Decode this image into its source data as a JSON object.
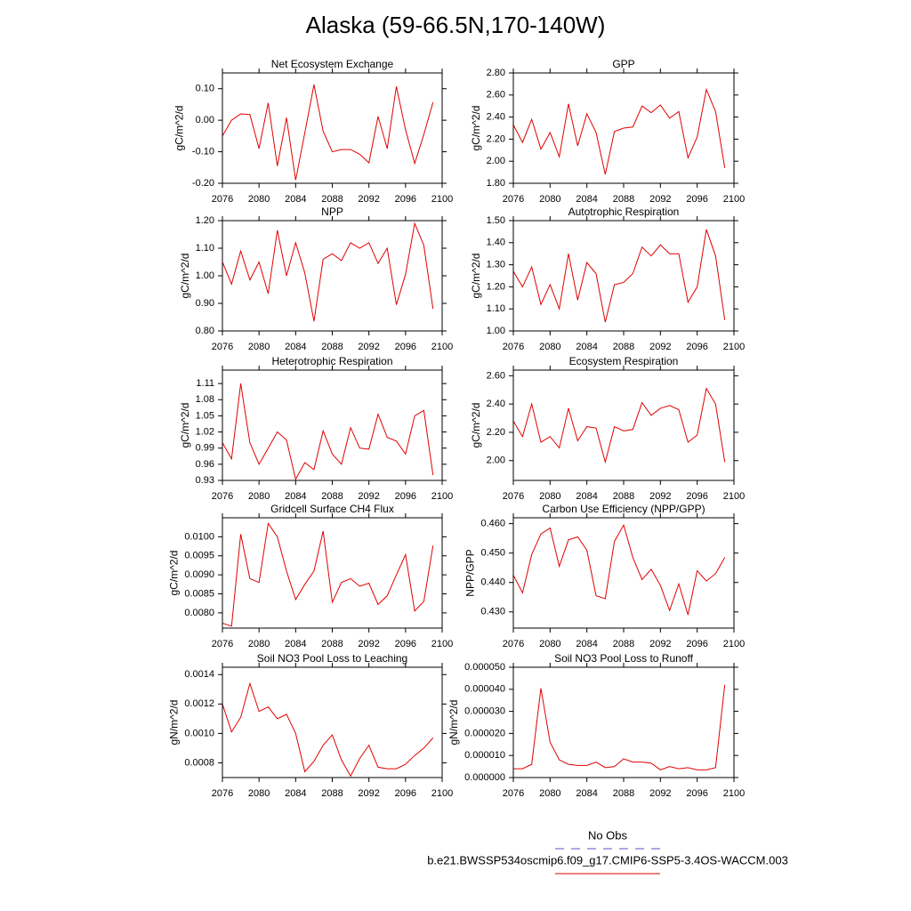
{
  "title": "Alaska (59-66.5N,170-140W)",
  "legend": [
    {
      "name": "No Obs",
      "color": "#5555cc",
      "dash": true
    },
    {
      "name": "b.e21.BWSSP534oscmip6.f09_g17.CMIP6-SSP5-3.4OS-WACCM.003",
      "color": "#e00000",
      "dash": false
    }
  ],
  "chart_data": [
    {
      "type": "line",
      "title": "Net Ecosystem Exchange",
      "ylabel": "gC/m^2/d",
      "x": [
        2076,
        2077,
        2078,
        2079,
        2080,
        2081,
        2082,
        2083,
        2084,
        2085,
        2086,
        2087,
        2088,
        2089,
        2090,
        2091,
        2092,
        2093,
        2094,
        2095,
        2096,
        2097,
        2098,
        2099
      ],
      "series": [
        {
          "color": "#e00000",
          "values": [
            -0.05,
            0.0,
            0.02,
            0.018,
            -0.09,
            0.055,
            -0.145,
            0.008,
            -0.19,
            -0.04,
            0.113,
            -0.035,
            -0.1,
            -0.093,
            -0.093,
            -0.108,
            -0.135,
            0.012,
            -0.09,
            0.107,
            -0.03,
            -0.137,
            -0.045,
            0.057
          ]
        }
      ],
      "xlim": [
        2076,
        2100
      ],
      "xticks": [
        2076,
        2080,
        2084,
        2088,
        2092,
        2096,
        2100
      ],
      "ylim": [
        -0.2,
        0.15
      ],
      "yticks": [
        {
          "value": -0.2,
          "label": "-0.20"
        },
        {
          "value": -0.1,
          "label": "-0.10"
        },
        {
          "value": 0,
          "label": "0.00"
        },
        {
          "value": 0.1,
          "label": "0.10"
        }
      ]
    },
    {
      "type": "line",
      "title": "GPP",
      "ylabel": "gC/m^2/d",
      "x": [
        2076,
        2077,
        2078,
        2079,
        2080,
        2081,
        2082,
        2083,
        2084,
        2085,
        2086,
        2087,
        2088,
        2089,
        2090,
        2091,
        2092,
        2093,
        2094,
        2095,
        2096,
        2097,
        2098,
        2099
      ],
      "series": [
        {
          "color": "#e00000",
          "values": [
            2.33,
            2.17,
            2.38,
            2.11,
            2.26,
            2.04,
            2.52,
            2.14,
            2.43,
            2.26,
            1.88,
            2.27,
            2.3,
            2.31,
            2.5,
            2.44,
            2.51,
            2.39,
            2.45,
            2.03,
            2.22,
            2.65,
            2.45,
            1.94
          ]
        }
      ],
      "xlim": [
        2076,
        2100
      ],
      "xticks": [
        2076,
        2080,
        2084,
        2088,
        2092,
        2096,
        2100
      ],
      "ylim": [
        1.8,
        2.8
      ],
      "yticks": [
        {
          "value": 1.8,
          "label": "1.80"
        },
        {
          "value": 2.0,
          "label": "2.00"
        },
        {
          "value": 2.2,
          "label": "2.20"
        },
        {
          "value": 2.4,
          "label": "2.40"
        },
        {
          "value": 2.6,
          "label": "2.60"
        },
        {
          "value": 2.8,
          "label": "2.80"
        }
      ]
    },
    {
      "type": "line",
      "title": "NPP",
      "ylabel": "gC/m^2/d",
      "x": [
        2076,
        2077,
        2078,
        2079,
        2080,
        2081,
        2082,
        2083,
        2084,
        2085,
        2086,
        2087,
        2088,
        2089,
        2090,
        2091,
        2092,
        2093,
        2094,
        2095,
        2096,
        2097,
        2098,
        2099
      ],
      "series": [
        {
          "color": "#e00000",
          "values": [
            1.05,
            0.97,
            1.09,
            0.985,
            1.05,
            0.935,
            1.165,
            1.0,
            1.12,
            1.01,
            0.835,
            1.06,
            1.08,
            1.055,
            1.12,
            1.1,
            1.12,
            1.045,
            1.1,
            0.895,
            1.005,
            1.19,
            1.11,
            0.88
          ]
        }
      ],
      "xlim": [
        2076,
        2100
      ],
      "xticks": [
        2076,
        2080,
        2084,
        2088,
        2092,
        2096,
        2100
      ],
      "ylim": [
        0.8,
        1.2
      ],
      "yticks": [
        {
          "value": 0.8,
          "label": "0.80"
        },
        {
          "value": 0.9,
          "label": "0.90"
        },
        {
          "value": 1.0,
          "label": "1.00"
        },
        {
          "value": 1.1,
          "label": "1.10"
        },
        {
          "value": 1.2,
          "label": "1.20"
        }
      ]
    },
    {
      "type": "line",
      "title": "Autotrophic Respiration",
      "ylabel": "gC/m^2/d",
      "x": [
        2076,
        2077,
        2078,
        2079,
        2080,
        2081,
        2082,
        2083,
        2084,
        2085,
        2086,
        2087,
        2088,
        2089,
        2090,
        2091,
        2092,
        2093,
        2094,
        2095,
        2096,
        2097,
        2098,
        2099
      ],
      "series": [
        {
          "color": "#e00000",
          "values": [
            1.27,
            1.2,
            1.29,
            1.12,
            1.21,
            1.1,
            1.35,
            1.14,
            1.31,
            1.26,
            1.04,
            1.21,
            1.22,
            1.26,
            1.38,
            1.34,
            1.39,
            1.35,
            1.35,
            1.13,
            1.2,
            1.46,
            1.34,
            1.05
          ]
        }
      ],
      "xlim": [
        2076,
        2100
      ],
      "xticks": [
        2076,
        2080,
        2084,
        2088,
        2092,
        2096,
        2100
      ],
      "ylim": [
        1.0,
        1.5
      ],
      "yticks": [
        {
          "value": 1.0,
          "label": "1.00"
        },
        {
          "value": 1.1,
          "label": "1.10"
        },
        {
          "value": 1.2,
          "label": "1.20"
        },
        {
          "value": 1.3,
          "label": "1.30"
        },
        {
          "value": 1.4,
          "label": "1.40"
        },
        {
          "value": 1.5,
          "label": "1.50"
        }
      ]
    },
    {
      "type": "line",
      "title": "Heterotrophic Respiration",
      "ylabel": "gC/m^2/d",
      "x": [
        2076,
        2077,
        2078,
        2079,
        2080,
        2081,
        2082,
        2083,
        2084,
        2085,
        2086,
        2087,
        2088,
        2089,
        2090,
        2091,
        2092,
        2093,
        2094,
        2095,
        2096,
        2097,
        2098,
        2099
      ],
      "series": [
        {
          "color": "#e00000",
          "values": [
            1.0,
            0.97,
            1.11,
            1.0,
            0.96,
            0.99,
            1.02,
            1.005,
            0.932,
            0.963,
            0.95,
            1.022,
            0.979,
            0.96,
            1.028,
            0.99,
            0.988,
            1.053,
            1.01,
            1.003,
            0.979,
            1.05,
            1.06,
            0.94
          ]
        }
      ],
      "xlim": [
        2076,
        2100
      ],
      "xticks": [
        2076,
        2080,
        2084,
        2088,
        2092,
        2096,
        2100
      ],
      "ylim": [
        0.93,
        1.135
      ],
      "yticks": [
        0.93,
        0.96,
        0.99,
        1.02,
        1.05,
        1.08,
        1.11
      ]
    },
    {
      "type": "line",
      "title": "Ecosystem Respiration",
      "ylabel": "gC/m^2/d",
      "x": [
        2076,
        2077,
        2078,
        2079,
        2080,
        2081,
        2082,
        2083,
        2084,
        2085,
        2086,
        2087,
        2088,
        2089,
        2090,
        2091,
        2092,
        2093,
        2094,
        2095,
        2096,
        2097,
        2098,
        2099
      ],
      "series": [
        {
          "color": "#e00000",
          "values": [
            2.28,
            2.17,
            2.4,
            2.13,
            2.17,
            2.09,
            2.37,
            2.14,
            2.24,
            2.23,
            1.99,
            2.24,
            2.21,
            2.22,
            2.41,
            2.32,
            2.37,
            2.39,
            2.36,
            2.13,
            2.18,
            2.51,
            2.4,
            1.99
          ]
        }
      ],
      "xlim": [
        2076,
        2100
      ],
      "xticks": [
        2076,
        2080,
        2084,
        2088,
        2092,
        2096,
        2100
      ],
      "ylim": [
        1.86,
        2.64
      ],
      "yticks": [
        {
          "value": 2.0,
          "label": "2.00"
        },
        {
          "value": 2.2,
          "label": "2.20"
        },
        {
          "value": 2.4,
          "label": "2.40"
        },
        {
          "value": 2.6,
          "label": "2.60"
        }
      ]
    },
    {
      "type": "line",
      "title": "Gridcell Surface CH4 Flux",
      "ylabel": "gC/m^2/d",
      "x": [
        2076,
        2077,
        2078,
        2079,
        2080,
        2081,
        2082,
        2083,
        2084,
        2085,
        2086,
        2087,
        2088,
        2089,
        2090,
        2091,
        2092,
        2093,
        2094,
        2095,
        2096,
        2097,
        2098,
        2099
      ],
      "series": [
        {
          "color": "#e00000",
          "values": [
            0.00773,
            0.00765,
            0.01007,
            0.0089,
            0.0088,
            0.01035,
            0.01,
            0.0091,
            0.00835,
            0.00875,
            0.0091,
            0.01015,
            0.00828,
            0.0088,
            0.0089,
            0.0087,
            0.00878,
            0.00822,
            0.00845,
            0.009,
            0.00953,
            0.00805,
            0.0083,
            0.00977
          ]
        }
      ],
      "xlim": [
        2076,
        2100
      ],
      "xticks": [
        2076,
        2080,
        2084,
        2088,
        2092,
        2096,
        2100
      ],
      "ylim": [
        0.0076,
        0.0105
      ],
      "yticks": [
        {
          "value": 0.008,
          "label": "0.0080"
        },
        {
          "value": 0.0085,
          "label": "0.0085"
        },
        {
          "value": 0.009,
          "label": "0.0090"
        },
        {
          "value": 0.0095,
          "label": "0.0095"
        },
        {
          "value": 0.01,
          "label": "0.0100"
        }
      ]
    },
    {
      "type": "line",
      "title": "Carbon Use Efficiency (NPP/GPP)",
      "ylabel": "NPP/GPP",
      "x": [
        2076,
        2077,
        2078,
        2079,
        2080,
        2081,
        2082,
        2083,
        2084,
        2085,
        2086,
        2087,
        2088,
        2089,
        2090,
        2091,
        2092,
        2093,
        2094,
        2095,
        2096,
        2097,
        2098,
        2099
      ],
      "series": [
        {
          "color": "#e00000",
          "values": [
            0.4425,
            0.4365,
            0.4495,
            0.4565,
            0.4585,
            0.4455,
            0.4545,
            0.4555,
            0.451,
            0.4355,
            0.4345,
            0.454,
            0.4595,
            0.4485,
            0.441,
            0.4445,
            0.439,
            0.4305,
            0.4395,
            0.429,
            0.444,
            0.4405,
            0.443,
            0.4485
          ]
        }
      ],
      "xlim": [
        2076,
        2100
      ],
      "xticks": [
        2076,
        2080,
        2084,
        2088,
        2092,
        2096,
        2100
      ],
      "ylim": [
        0.4245,
        0.462
      ],
      "yticks": [
        {
          "value": 0.43,
          "label": "0.430"
        },
        {
          "value": 0.44,
          "label": "0.440"
        },
        {
          "value": 0.45,
          "label": "0.450"
        },
        {
          "value": 0.46,
          "label": "0.460"
        }
      ]
    },
    {
      "type": "line",
      "title": "Soil NO3 Pool Loss to Leaching",
      "ylabel": "gN/m^2/d",
      "x": [
        2076,
        2077,
        2078,
        2079,
        2080,
        2081,
        2082,
        2083,
        2084,
        2085,
        2086,
        2087,
        2088,
        2089,
        2090,
        2091,
        2092,
        2093,
        2094,
        2095,
        2096,
        2097,
        2098,
        2099
      ],
      "series": [
        {
          "color": "#e00000",
          "values": [
            0.0012,
            0.00101,
            0.00111,
            0.00134,
            0.00115,
            0.00118,
            0.0011,
            0.00113,
            0.001,
            0.00074,
            0.00081,
            0.00092,
            0.00099,
            0.00082,
            0.00071,
            0.00083,
            0.00092,
            0.00077,
            0.00076,
            0.00076,
            0.00079,
            0.00085,
            0.0009,
            0.00097
          ]
        }
      ],
      "xlim": [
        2076,
        2100
      ],
      "xticks": [
        2076,
        2080,
        2084,
        2088,
        2092,
        2096,
        2100
      ],
      "ylim": [
        0.0007,
        0.00145
      ],
      "yticks": [
        {
          "value": 0.0008,
          "label": "0.0008"
        },
        {
          "value": 0.001,
          "label": "0.0010"
        },
        {
          "value": 0.0012,
          "label": "0.0012"
        },
        {
          "value": 0.0014,
          "label": "0.0014"
        }
      ]
    },
    {
      "type": "line",
      "title": "Soil NO3 Pool Loss to Runoff",
      "ylabel": "gN/m^2/d",
      "x": [
        2076,
        2077,
        2078,
        2079,
        2080,
        2081,
        2082,
        2083,
        2084,
        2085,
        2086,
        2087,
        2088,
        2089,
        2090,
        2091,
        2092,
        2093,
        2094,
        2095,
        2096,
        2097,
        2098,
        2099
      ],
      "series": [
        {
          "color": "#e00000",
          "values": [
            4e-06,
            4e-06,
            6e-06,
            4.05e-05,
            1.6e-05,
            8e-06,
            6e-06,
            5.5e-06,
            5.5e-06,
            7e-06,
            4.5e-06,
            5e-06,
            8.5e-06,
            7e-06,
            7e-06,
            6.5e-06,
            3.5e-06,
            5e-06,
            4e-06,
            4.5e-06,
            3.5e-06,
            3.5e-06,
            4.5e-06,
            4.2e-05
          ]
        }
      ],
      "xlim": [
        2076,
        2100
      ],
      "xticks": [
        2076,
        2080,
        2084,
        2088,
        2092,
        2096,
        2100
      ],
      "ylim": [
        0,
        5e-05
      ],
      "yticks": [
        {
          "value": 0,
          "label": "0.000000"
        },
        {
          "value": 1e-05,
          "label": "0.000010"
        },
        {
          "value": 2e-05,
          "label": "0.000020"
        },
        {
          "value": 3e-05,
          "label": "0.000030"
        },
        {
          "value": 4e-05,
          "label": "0.000040"
        },
        {
          "value": 5e-05,
          "label": "0.000050"
        }
      ]
    }
  ]
}
